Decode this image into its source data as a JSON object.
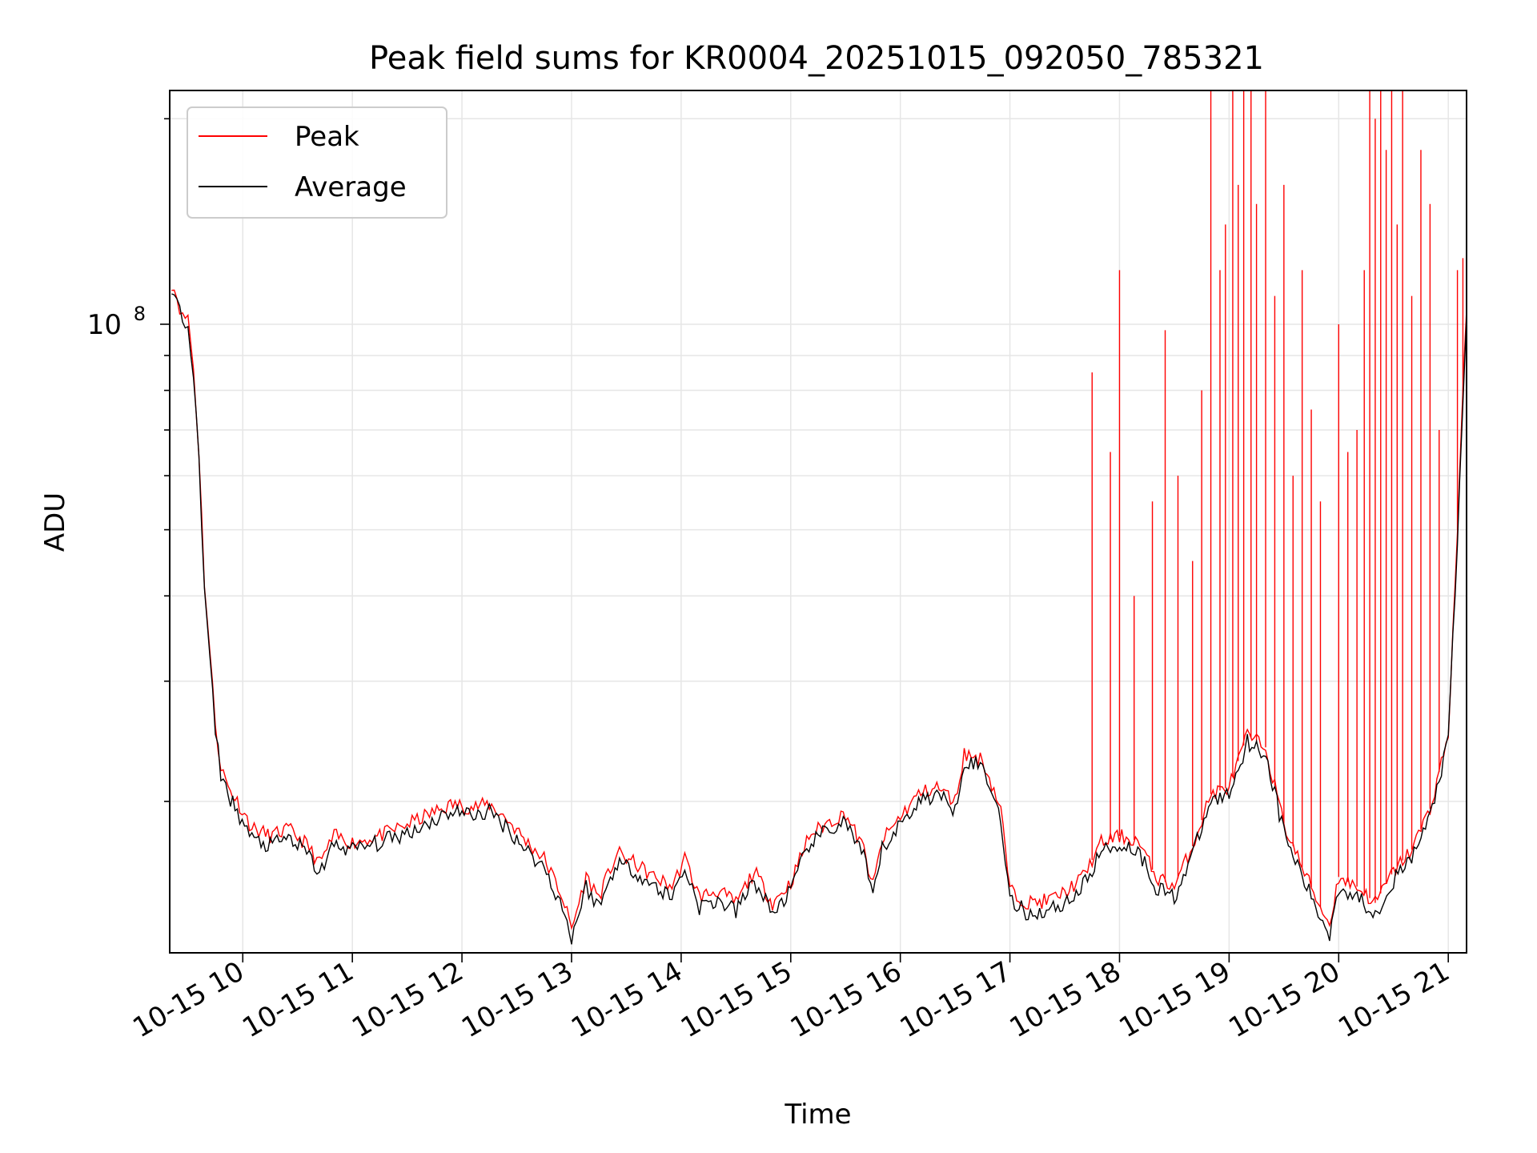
{
  "chart_data": {
    "type": "line",
    "title": "Peak field sums for KR0004_20251015_092050_785321",
    "xlabel": "Time",
    "ylabel": "ADU",
    "yscale": "log",
    "grid": true,
    "legend_position": "upper-left",
    "x_ticks": [
      {
        "t": "2025-10-15 10:00",
        "label": "10-15 10"
      },
      {
        "t": "2025-10-15 11:00",
        "label": "10-15 11"
      },
      {
        "t": "2025-10-15 12:00",
        "label": "10-15 12"
      },
      {
        "t": "2025-10-15 13:00",
        "label": "10-15 13"
      },
      {
        "t": "2025-10-15 14:00",
        "label": "10-15 14"
      },
      {
        "t": "2025-10-15 15:00",
        "label": "10-15 15"
      },
      {
        "t": "2025-10-15 16:00",
        "label": "10-15 16"
      },
      {
        "t": "2025-10-15 17:00",
        "label": "10-15 17"
      },
      {
        "t": "2025-10-15 18:00",
        "label": "10-15 18"
      },
      {
        "t": "2025-10-15 19:00",
        "label": "10-15 19"
      },
      {
        "t": "2025-10-15 20:00",
        "label": "10-15 20"
      },
      {
        "t": "2025-10-15 21:00",
        "label": "10-15 21"
      }
    ],
    "y_ticks": [
      {
        "value": 100000000,
        "label": "10^8"
      }
    ],
    "xlim": [
      "2025-10-15 09:20",
      "2025-10-15 21:10"
    ],
    "ylim": [
      12000000,
      220000000
    ],
    "series": [
      {
        "name": "Peak",
        "color": "#ff0000",
        "points": [
          [
            "2025-10-15 09:21",
            115000000
          ],
          [
            "2025-10-15 09:24",
            110000000
          ],
          [
            "2025-10-15 09:27",
            102000000
          ],
          [
            "2025-10-15 09:30",
            103000000
          ],
          [
            "2025-10-15 09:33",
            86000000
          ],
          [
            "2025-10-15 09:36",
            65000000
          ],
          [
            "2025-10-15 09:39",
            42000000
          ],
          [
            "2025-10-15 09:42",
            33000000
          ],
          [
            "2025-10-15 09:45",
            26000000
          ],
          [
            "2025-10-15 09:48",
            22500000
          ],
          [
            "2025-10-15 09:52",
            21000000
          ],
          [
            "2025-10-15 09:57",
            20000000
          ],
          [
            "2025-10-15 10:05",
            18300000
          ],
          [
            "2025-10-15 10:15",
            17800000
          ],
          [
            "2025-10-15 10:25",
            18200000
          ],
          [
            "2025-10-15 10:35",
            17300000
          ],
          [
            "2025-10-15 10:42",
            16200000
          ],
          [
            "2025-10-15 10:50",
            17800000
          ],
          [
            "2025-10-15 11:00",
            17400000
          ],
          [
            "2025-10-15 11:15",
            17800000
          ],
          [
            "2025-10-15 11:30",
            18500000
          ],
          [
            "2025-10-15 11:45",
            19300000
          ],
          [
            "2025-10-15 11:55",
            19800000
          ],
          [
            "2025-10-15 12:05",
            19600000
          ],
          [
            "2025-10-15 12:15",
            19800000
          ],
          [
            "2025-10-15 12:25",
            18800000
          ],
          [
            "2025-10-15 12:35",
            17500000
          ],
          [
            "2025-10-15 12:45",
            16500000
          ],
          [
            "2025-10-15 12:55",
            14500000
          ],
          [
            "2025-10-15 13:00",
            13000000
          ],
          [
            "2025-10-15 13:08",
            15500000
          ],
          [
            "2025-10-15 13:15",
            14500000
          ],
          [
            "2025-10-15 13:25",
            16800000
          ],
          [
            "2025-10-15 13:35",
            16200000
          ],
          [
            "2025-10-15 13:45",
            15500000
          ],
          [
            "2025-10-15 13:55",
            15000000
          ],
          [
            "2025-10-15 14:02",
            16500000
          ],
          [
            "2025-10-15 14:10",
            14500000
          ],
          [
            "2025-10-15 14:20",
            14800000
          ],
          [
            "2025-10-15 14:30",
            14200000
          ],
          [
            "2025-10-15 14:40",
            15800000
          ],
          [
            "2025-10-15 14:50",
            14200000
          ],
          [
            "2025-10-15 15:00",
            15200000
          ],
          [
            "2025-10-15 15:10",
            17800000
          ],
          [
            "2025-10-15 15:20",
            18600000
          ],
          [
            "2025-10-15 15:30",
            19200000
          ],
          [
            "2025-10-15 15:40",
            17000000
          ],
          [
            "2025-10-15 15:45",
            15000000
          ],
          [
            "2025-10-15 15:50",
            17500000
          ],
          [
            "2025-10-15 16:00",
            19000000
          ],
          [
            "2025-10-15 16:10",
            20500000
          ],
          [
            "2025-10-15 16:20",
            21000000
          ],
          [
            "2025-10-15 16:30",
            20000000
          ],
          [
            "2025-10-15 16:35",
            23500000
          ],
          [
            "2025-10-15 16:45",
            23000000
          ],
          [
            "2025-10-15 16:55",
            19500000
          ],
          [
            "2025-10-15 17:00",
            14800000
          ],
          [
            "2025-10-15 17:10",
            14200000
          ],
          [
            "2025-10-15 17:20",
            14300000
          ],
          [
            "2025-10-15 17:30",
            14700000
          ],
          [
            "2025-10-15 17:40",
            15500000
          ],
          [
            "2025-10-15 17:50",
            17400000
          ],
          [
            "2025-10-15 18:00",
            17800000
          ],
          [
            "2025-10-15 18:10",
            17500000
          ],
          [
            "2025-10-15 18:20",
            15500000
          ],
          [
            "2025-10-15 18:30",
            15000000
          ],
          [
            "2025-10-15 18:40",
            17200000
          ],
          [
            "2025-10-15 18:50",
            20500000
          ],
          [
            "2025-10-15 19:00",
            21000000
          ],
          [
            "2025-10-15 19:10",
            25000000
          ],
          [
            "2025-10-15 19:20",
            24000000
          ],
          [
            "2025-10-15 19:30",
            18500000
          ],
          [
            "2025-10-15 19:40",
            16000000
          ],
          [
            "2025-10-15 19:50",
            14000000
          ],
          [
            "2025-10-15 19:55",
            13200000
          ],
          [
            "2025-10-15 20:00",
            15500000
          ],
          [
            "2025-10-15 20:10",
            15000000
          ],
          [
            "2025-10-15 20:20",
            14200000
          ],
          [
            "2025-10-15 20:30",
            15800000
          ],
          [
            "2025-10-15 20:40",
            17000000
          ],
          [
            "2025-10-15 20:50",
            19500000
          ],
          [
            "2025-10-15 21:00",
            25000000
          ],
          [
            "2025-10-15 21:05",
            50000000
          ],
          [
            "2025-10-15 21:10",
            105000000
          ]
        ],
        "spikes": [
          [
            "2025-10-15 17:45",
            85000000
          ],
          [
            "2025-10-15 17:55",
            65000000
          ],
          [
            "2025-10-15 18:00",
            120000000
          ],
          [
            "2025-10-15 18:08",
            40000000
          ],
          [
            "2025-10-15 18:18",
            55000000
          ],
          [
            "2025-10-15 18:25",
            98000000
          ],
          [
            "2025-10-15 18:32",
            60000000
          ],
          [
            "2025-10-15 18:40",
            45000000
          ],
          [
            "2025-10-15 18:45",
            80000000
          ],
          [
            "2025-10-15 18:50",
            220000000
          ],
          [
            "2025-10-15 18:55",
            120000000
          ],
          [
            "2025-10-15 18:58",
            140000000
          ],
          [
            "2025-10-15 19:02",
            220000000
          ],
          [
            "2025-10-15 19:05",
            160000000
          ],
          [
            "2025-10-15 19:08",
            220000000
          ],
          [
            "2025-10-15 19:12",
            220000000
          ],
          [
            "2025-10-15 19:15",
            150000000
          ],
          [
            "2025-10-15 19:20",
            220000000
          ],
          [
            "2025-10-15 19:25",
            110000000
          ],
          [
            "2025-10-15 19:30",
            160000000
          ],
          [
            "2025-10-15 19:35",
            60000000
          ],
          [
            "2025-10-15 19:40",
            120000000
          ],
          [
            "2025-10-15 19:45",
            75000000
          ],
          [
            "2025-10-15 19:50",
            55000000
          ],
          [
            "2025-10-15 20:00",
            100000000
          ],
          [
            "2025-10-15 20:05",
            65000000
          ],
          [
            "2025-10-15 20:10",
            70000000
          ],
          [
            "2025-10-15 20:14",
            120000000
          ],
          [
            "2025-10-15 20:17",
            220000000
          ],
          [
            "2025-10-15 20:20",
            200000000
          ],
          [
            "2025-10-15 20:23",
            220000000
          ],
          [
            "2025-10-15 20:26",
            180000000
          ],
          [
            "2025-10-15 20:29",
            220000000
          ],
          [
            "2025-10-15 20:32",
            140000000
          ],
          [
            "2025-10-15 20:35",
            220000000
          ],
          [
            "2025-10-15 20:40",
            110000000
          ],
          [
            "2025-10-15 20:45",
            180000000
          ],
          [
            "2025-10-15 20:50",
            150000000
          ],
          [
            "2025-10-15 20:55",
            70000000
          ],
          [
            "2025-10-15 21:05",
            120000000
          ],
          [
            "2025-10-15 21:08",
            125000000
          ]
        ]
      },
      {
        "name": "Average",
        "color": "#000000",
        "points": [
          [
            "2025-10-15 09:21",
            114000000
          ],
          [
            "2025-10-15 09:24",
            108000000
          ],
          [
            "2025-10-15 09:27",
            100000000
          ],
          [
            "2025-10-15 09:30",
            101000000
          ],
          [
            "2025-10-15 09:33",
            84000000
          ],
          [
            "2025-10-15 09:36",
            63000000
          ],
          [
            "2025-10-15 09:39",
            41000000
          ],
          [
            "2025-10-15 09:42",
            32000000
          ],
          [
            "2025-10-15 09:45",
            25500000
          ],
          [
            "2025-10-15 09:48",
            22000000
          ],
          [
            "2025-10-15 09:52",
            20500000
          ],
          [
            "2025-10-15 09:57",
            19300000
          ],
          [
            "2025-10-15 10:05",
            17600000
          ],
          [
            "2025-10-15 10:15",
            17200000
          ],
          [
            "2025-10-15 10:25",
            17700000
          ],
          [
            "2025-10-15 10:35",
            16800000
          ],
          [
            "2025-10-15 10:42",
            15700000
          ],
          [
            "2025-10-15 10:50",
            17300000
          ],
          [
            "2025-10-15 11:00",
            17000000
          ],
          [
            "2025-10-15 11:15",
            17400000
          ],
          [
            "2025-10-15 11:30",
            18000000
          ],
          [
            "2025-10-15 11:45",
            18800000
          ],
          [
            "2025-10-15 11:55",
            19400000
          ],
          [
            "2025-10-15 12:05",
            19100000
          ],
          [
            "2025-10-15 12:15",
            19300000
          ],
          [
            "2025-10-15 12:25",
            18300000
          ],
          [
            "2025-10-15 12:35",
            17000000
          ],
          [
            "2025-10-15 12:45",
            16000000
          ],
          [
            "2025-10-15 12:55",
            14000000
          ],
          [
            "2025-10-15 13:00",
            12600000
          ],
          [
            "2025-10-15 13:08",
            15000000
          ],
          [
            "2025-10-15 13:15",
            14000000
          ],
          [
            "2025-10-15 13:25",
            16300000
          ],
          [
            "2025-10-15 13:35",
            15800000
          ],
          [
            "2025-10-15 13:45",
            15000000
          ],
          [
            "2025-10-15 13:55",
            14500000
          ],
          [
            "2025-10-15 14:02",
            16000000
          ],
          [
            "2025-10-15 14:10",
            14000000
          ],
          [
            "2025-10-15 14:20",
            14300000
          ],
          [
            "2025-10-15 14:30",
            13800000
          ],
          [
            "2025-10-15 14:40",
            15300000
          ],
          [
            "2025-10-15 14:50",
            13700000
          ],
          [
            "2025-10-15 15:00",
            14800000
          ],
          [
            "2025-10-15 15:10",
            17300000
          ],
          [
            "2025-10-15 15:20",
            18100000
          ],
          [
            "2025-10-15 15:30",
            18700000
          ],
          [
            "2025-10-15 15:40",
            16500000
          ],
          [
            "2025-10-15 15:45",
            14500000
          ],
          [
            "2025-10-15 15:50",
            17000000
          ],
          [
            "2025-10-15 16:00",
            18500000
          ],
          [
            "2025-10-15 16:10",
            20000000
          ],
          [
            "2025-10-15 16:20",
            20500000
          ],
          [
            "2025-10-15 16:30",
            19500000
          ],
          [
            "2025-10-15 16:35",
            23000000
          ],
          [
            "2025-10-15 16:45",
            22500000
          ],
          [
            "2025-10-15 16:55",
            19000000
          ],
          [
            "2025-10-15 17:00",
            14300000
          ],
          [
            "2025-10-15 17:10",
            13700000
          ],
          [
            "2025-10-15 17:20",
            13800000
          ],
          [
            "2025-10-15 17:30",
            14200000
          ],
          [
            "2025-10-15 17:40",
            15000000
          ],
          [
            "2025-10-15 17:50",
            16900000
          ],
          [
            "2025-10-15 18:00",
            17300000
          ],
          [
            "2025-10-15 18:10",
            17000000
          ],
          [
            "2025-10-15 18:20",
            15000000
          ],
          [
            "2025-10-15 18:30",
            14500000
          ],
          [
            "2025-10-15 18:40",
            16700000
          ],
          [
            "2025-10-15 18:50",
            20000000
          ],
          [
            "2025-10-15 19:00",
            20500000
          ],
          [
            "2025-10-15 19:10",
            24500000
          ],
          [
            "2025-10-15 19:20",
            23500000
          ],
          [
            "2025-10-15 19:30",
            18000000
          ],
          [
            "2025-10-15 19:40",
            15500000
          ],
          [
            "2025-10-15 19:50",
            13500000
          ],
          [
            "2025-10-15 19:55",
            12800000
          ],
          [
            "2025-10-15 20:00",
            15000000
          ],
          [
            "2025-10-15 20:10",
            14500000
          ],
          [
            "2025-10-15 20:20",
            13700000
          ],
          [
            "2025-10-15 20:30",
            15300000
          ],
          [
            "2025-10-15 20:40",
            16500000
          ],
          [
            "2025-10-15 20:50",
            19000000
          ],
          [
            "2025-10-15 21:00",
            24500000
          ],
          [
            "2025-10-15 21:05",
            48000000
          ],
          [
            "2025-10-15 21:10",
            103000000
          ]
        ]
      }
    ]
  }
}
